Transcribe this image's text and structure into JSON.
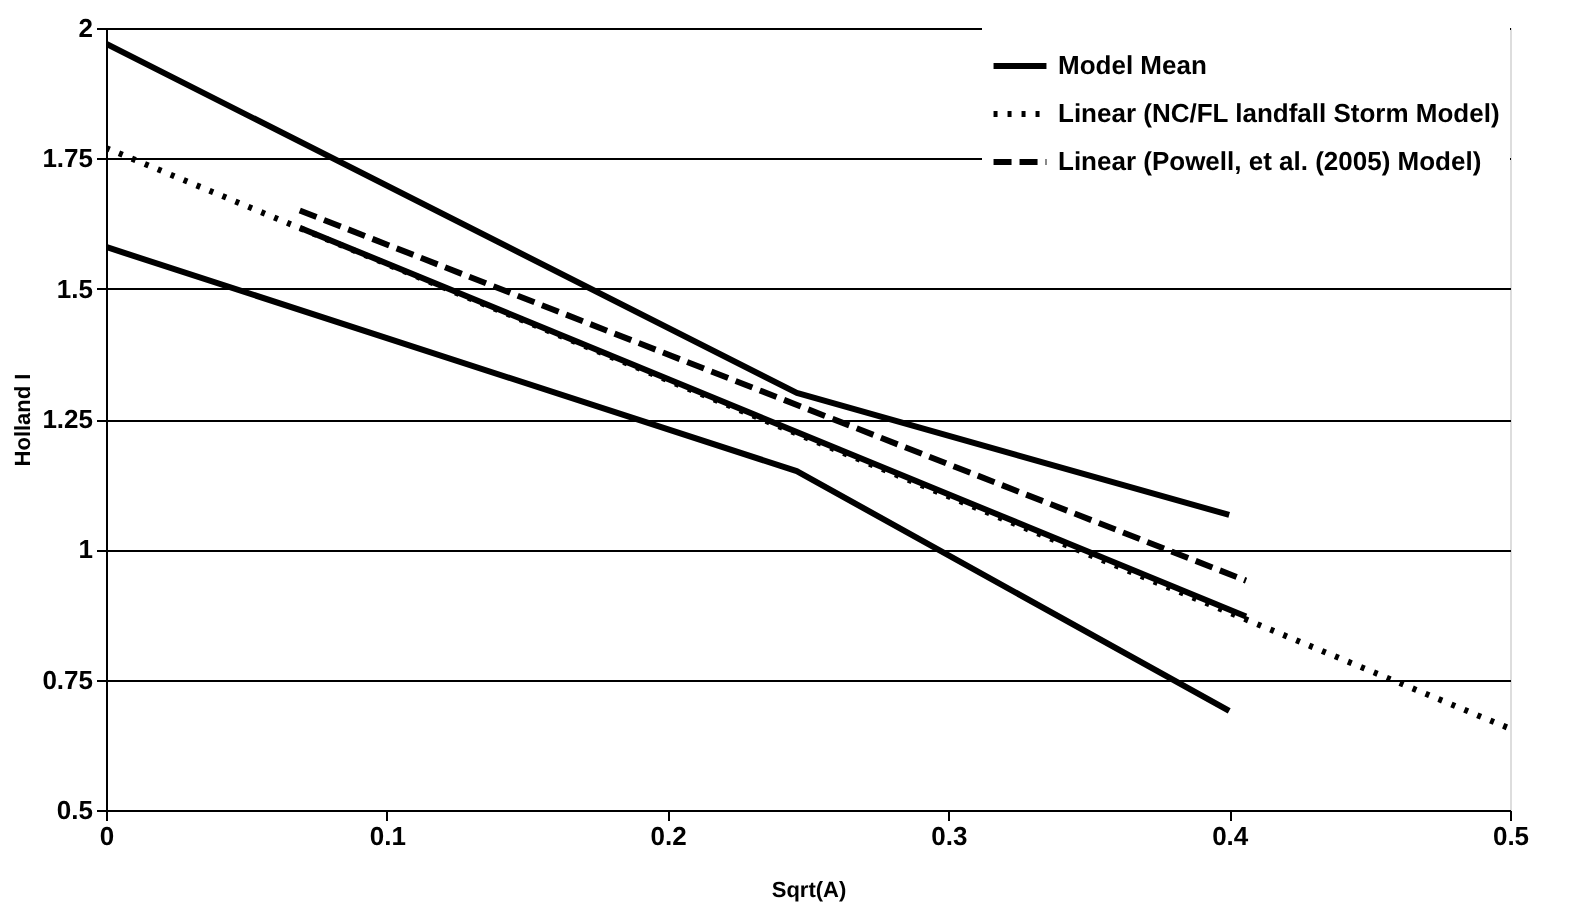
{
  "chart_data": {
    "type": "line",
    "xlabel": "Sqrt(A)",
    "ylabel": "Holland I",
    "xlim": [
      0,
      0.5
    ],
    "xticks": [
      0,
      0.1,
      0.2,
      0.3,
      0.4,
      0.5
    ],
    "ylim": [
      0.5,
      2
    ],
    "yticks": [
      0.5,
      0.75,
      1,
      1.25,
      1.5,
      1.75,
      2
    ],
    "grid": "y",
    "legend": "top right",
    "marker": "none",
    "series": [
      {
        "name": "Model Mean",
        "color": "#000000",
        "line_style": "solid",
        "x": [
          0.069,
          0.406
        ],
        "values": [
          1.617,
          0.871
        ]
      },
      {
        "name": "Linear (NC/FL landfall Storm Model)",
        "color": "#000000",
        "line_style": "dotted",
        "x": [
          0,
          0.5
        ],
        "values": [
          1.77,
          0.656
        ]
      },
      {
        "name": "Linear (Powell, et al. (2005) Model)",
        "color": "#000000",
        "line_style": "dashed",
        "x": [
          0.069,
          0.406
        ],
        "values": [
          1.65,
          0.94
        ]
      },
      {
        "color": "#000000",
        "line_style": "solid",
        "x": [
          0,
          0.246,
          0.4
        ],
        "values": [
          1.97,
          1.3,
          1.066
        ]
      },
      {
        "color": "#000000",
        "line_style": "solid",
        "x": [
          0,
          0.246,
          0.4
        ],
        "values": [
          1.58,
          1.15,
          0.69
        ]
      }
    ]
  }
}
